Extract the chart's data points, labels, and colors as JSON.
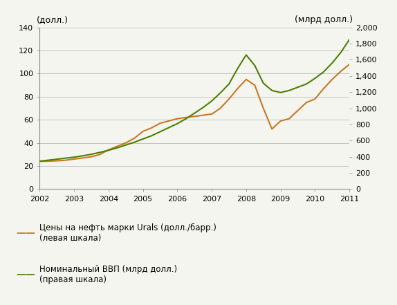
{
  "oil_color": "#c87820",
  "gdp_color": "#4a8000",
  "background_color": "#f5f5f0",
  "plot_bg_color": "#f5f5f0",
  "grid_color": "#bbbbbb",
  "left_ylabel": "(долл.)",
  "right_ylabel": "(млрд долл.)",
  "left_ylim": [
    0,
    140
  ],
  "right_ylim": [
    0,
    2000
  ],
  "left_yticks": [
    0,
    20,
    40,
    60,
    80,
    100,
    120,
    140
  ],
  "right_yticks": [
    0,
    200,
    400,
    600,
    800,
    1000,
    1200,
    1400,
    1600,
    1800,
    2000
  ],
  "xticks": [
    2002,
    2003,
    2004,
    2005,
    2006,
    2007,
    2008,
    2009,
    2010,
    2011
  ],
  "xlim": [
    2002,
    2011
  ],
  "legend_oil": "Цены на нефть марки Urals (долл./барр.)\n(левая шкала)",
  "legend_gdp": "Номинальный ВВП (млрд долл.)\n(правая шкала)",
  "years_oil": [
    2002,
    2002.25,
    2002.5,
    2002.75,
    2003,
    2003.25,
    2003.5,
    2003.75,
    2004,
    2004.25,
    2004.5,
    2004.75,
    2005,
    2005.25,
    2005.5,
    2005.75,
    2006,
    2006.25,
    2006.5,
    2006.75,
    2007,
    2007.25,
    2007.5,
    2007.75,
    2008,
    2008.25,
    2008.5,
    2008.75,
    2009,
    2009.25,
    2009.5,
    2009.75,
    2010,
    2010.25,
    2010.5,
    2010.75,
    2011
  ],
  "oil_price": [
    24,
    24.2,
    24.5,
    25,
    26,
    27,
    28,
    30,
    34,
    37,
    40,
    44,
    50,
    53,
    57,
    59,
    61,
    62,
    63,
    64,
    65,
    70,
    78,
    87,
    95,
    90,
    70,
    52,
    59,
    61,
    68,
    75,
    78,
    87,
    95,
    102,
    108
  ],
  "years_gdp": [
    2002,
    2002.25,
    2002.5,
    2002.75,
    2003,
    2003.25,
    2003.5,
    2003.75,
    2004,
    2004.25,
    2004.5,
    2004.75,
    2005,
    2005.25,
    2005.5,
    2005.75,
    2006,
    2006.25,
    2006.5,
    2006.75,
    2007,
    2007.25,
    2007.5,
    2007.75,
    2008,
    2008.25,
    2008.5,
    2008.75,
    2009,
    2009.25,
    2009.5,
    2009.75,
    2010,
    2010.25,
    2010.5,
    2010.75,
    2011
  ],
  "gdp": [
    345,
    358,
    370,
    383,
    395,
    412,
    430,
    455,
    480,
    510,
    545,
    580,
    620,
    660,
    710,
    760,
    810,
    870,
    940,
    1010,
    1090,
    1190,
    1300,
    1490,
    1660,
    1530,
    1310,
    1220,
    1195,
    1220,
    1260,
    1300,
    1370,
    1450,
    1560,
    1690,
    1850
  ]
}
